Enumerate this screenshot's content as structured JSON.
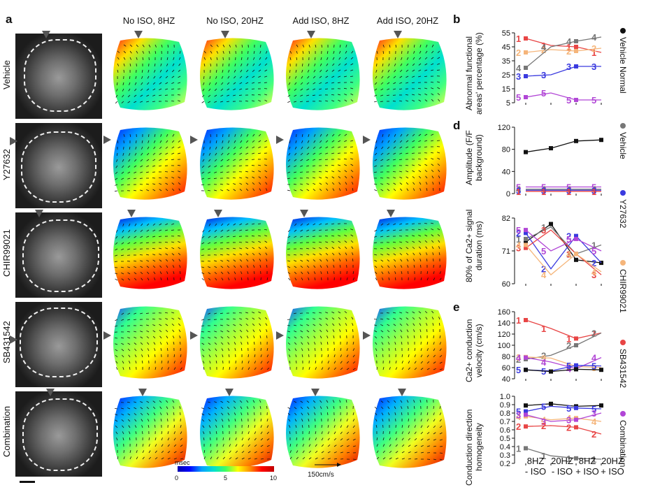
{
  "panels": {
    "a": "a",
    "b": "b",
    "d": "d",
    "e": "e"
  },
  "columns": [
    "No ISO, 8HZ",
    "No ISO, 20HZ",
    "Add ISO, 8HZ",
    "Add ISO, 20HZ"
  ],
  "rows": [
    "Vehicle",
    "Y27632",
    "CHIR99021",
    "SB431542",
    "Combination"
  ],
  "colorbar": {
    "unit": "msec",
    "ticks": [
      "0",
      "5",
      "10"
    ]
  },
  "velocity_scale": "150cm/s",
  "legend": [
    {
      "label": "Vehicle Normal",
      "color": "#111111"
    },
    {
      "label": "Vehicle",
      "color": "#777777"
    },
    {
      "label": "Y27632",
      "color": "#3a3adf"
    },
    {
      "label": "CHIR99021",
      "color": "#f5b57a"
    },
    {
      "label": "SB431542",
      "color": "#e84545"
    },
    {
      "label": "Combination",
      "color": "#b146d6"
    }
  ],
  "x_categories": [
    {
      "top": "8HZ",
      "bottom": "- ISO"
    },
    {
      "top": "20HZ",
      "bottom": "- ISO"
    },
    {
      "top": "8HZ",
      "bottom": "+ ISO"
    },
    {
      "top": "20HZ",
      "bottom": "+ ISO"
    }
  ],
  "chart_data": [
    {
      "type": "line",
      "ylabel": "Abnormal functional areas' percentage (%)",
      "ylim": [
        5,
        55
      ],
      "ticks": [
        5,
        15,
        25,
        35,
        45,
        55
      ],
      "tick_labels": [
        "5",
        "15",
        "25",
        "35",
        "45",
        "55"
      ],
      "categories": [
        "8HZ - ISO",
        "20HZ - ISO",
        "8HZ + ISO",
        "20HZ + ISO"
      ],
      "series": [
        {
          "marker": "1",
          "color": "#e84545",
          "values": [
            51,
            46,
            45,
            41
          ]
        },
        {
          "marker": "2",
          "color": "#f5b57a",
          "values": [
            41,
            43,
            42,
            44
          ]
        },
        {
          "marker": "3",
          "color": "#3a3adf",
          "values": [
            24,
            25,
            31,
            31
          ]
        },
        {
          "marker": "4",
          "color": "#777777",
          "values": [
            30,
            45,
            49,
            52
          ]
        },
        {
          "marker": "5",
          "color": "#b146d6",
          "values": [
            9,
            12,
            7,
            7
          ]
        }
      ]
    },
    {
      "type": "line",
      "ylabel": "Amplitude (F/F background)",
      "ylim": [
        0,
        120
      ],
      "ticks": [
        0,
        40,
        80,
        120
      ],
      "tick_labels": [
        "0",
        "40",
        "80",
        "120"
      ],
      "categories": [
        "8HZ - ISO",
        "20HZ - ISO",
        "8HZ + ISO",
        "20HZ + ISO"
      ],
      "series": [
        {
          "marker": "",
          "color": "#111111",
          "values": [
            75,
            82,
            95,
            97
          ]
        },
        {
          "marker": "5",
          "color": "#b146d6",
          "values": [
            12,
            12,
            12,
            12
          ]
        },
        {
          "marker": "4",
          "color": "#777777",
          "values": [
            8,
            8,
            8,
            8
          ]
        },
        {
          "marker": "3",
          "color": "#3a3adf",
          "values": [
            6,
            6,
            6,
            6
          ]
        },
        {
          "marker": "1",
          "color": "#e84545",
          "values": [
            4,
            4,
            4,
            4
          ]
        }
      ]
    },
    {
      "type": "line",
      "ylabel": "80% of Ca2+ signal duration (ms)",
      "ylim": [
        60,
        82
      ],
      "ticks": [
        60,
        71,
        82
      ],
      "tick_labels": [
        "60",
        "71",
        "82"
      ],
      "categories": [
        "8HZ - ISO",
        "20HZ - ISO",
        "8HZ + ISO",
        "20HZ + ISO"
      ],
      "series": [
        {
          "marker": "",
          "color": "#111111",
          "values": [
            74,
            80,
            68,
            67
          ]
        },
        {
          "marker": "1",
          "color": "#777777",
          "values": [
            75,
            79,
            70,
            73
          ]
        },
        {
          "marker": "2",
          "color": "#3a3adf",
          "values": [
            77,
            65,
            76,
            67
          ]
        },
        {
          "marker": "3",
          "color": "#e84545",
          "values": [
            72,
            78,
            70,
            63
          ]
        },
        {
          "marker": "4",
          "color": "#f5b57a",
          "values": [
            73,
            63,
            70,
            64
          ]
        },
        {
          "marker": "5",
          "color": "#b146d6",
          "values": [
            78,
            71,
            75,
            71
          ]
        }
      ]
    },
    {
      "type": "line",
      "ylabel": "Ca2+ conduction velocity (cm/s)",
      "ylim": [
        40,
        160
      ],
      "ticks": [
        40,
        60,
        80,
        100,
        120,
        140,
        160
      ],
      "tick_labels": [
        "40",
        "60",
        "80",
        "100",
        "120",
        "140",
        "160"
      ],
      "categories": [
        "8HZ - ISO",
        "20HZ - ISO",
        "8HZ + ISO",
        "20HZ + ISO"
      ],
      "series": [
        {
          "marker": "1",
          "color": "#e84545",
          "values": [
            145,
            130,
            112,
            122
          ]
        },
        {
          "marker": "2",
          "color": "#777777",
          "values": [
            75,
            82,
            100,
            122
          ]
        },
        {
          "marker": "3",
          "color": "#f5b57a",
          "values": [
            79,
            77,
            62,
            60
          ]
        },
        {
          "marker": "4",
          "color": "#b146d6",
          "values": [
            78,
            70,
            58,
            78
          ]
        },
        {
          "marker": "5",
          "color": "#3a3adf",
          "values": [
            56,
            54,
            64,
            63
          ]
        },
        {
          "marker": "",
          "color": "#111111",
          "values": [
            56,
            53,
            57,
            56
          ]
        }
      ]
    },
    {
      "type": "line",
      "ylabel": "Conduction direction homogeneity",
      "ylim": [
        0.2,
        1.0
      ],
      "ticks": [
        0.2,
        0.3,
        0.4,
        0.5,
        0.6,
        0.7,
        0.8,
        0.9,
        1.0
      ],
      "tick_labels": [
        "0.2",
        "0.3",
        "0.4",
        "0.5",
        "0.6",
        "0.7",
        "0.8",
        "0.9",
        "1.0"
      ],
      "categories": [
        "8HZ - ISO",
        "20HZ - ISO",
        "8HZ + ISO",
        "20HZ + ISO"
      ],
      "series": [
        {
          "marker": "",
          "color": "#111111",
          "values": [
            0.89,
            0.91,
            0.88,
            0.89
          ]
        },
        {
          "marker": "5",
          "color": "#3a3adf",
          "values": [
            0.82,
            0.88,
            0.86,
            0.85
          ]
        },
        {
          "marker": "4",
          "color": "#f5b57a",
          "values": [
            0.76,
            0.72,
            0.74,
            0.7
          ]
        },
        {
          "marker": "3",
          "color": "#b146d6",
          "values": [
            0.78,
            0.7,
            0.72,
            0.8
          ]
        },
        {
          "marker": "2",
          "color": "#e84545",
          "values": [
            0.64,
            0.65,
            0.63,
            0.55
          ]
        },
        {
          "marker": "1",
          "color": "#777777",
          "values": [
            0.38,
            0.29,
            0.26,
            0.25
          ]
        }
      ]
    }
  ]
}
